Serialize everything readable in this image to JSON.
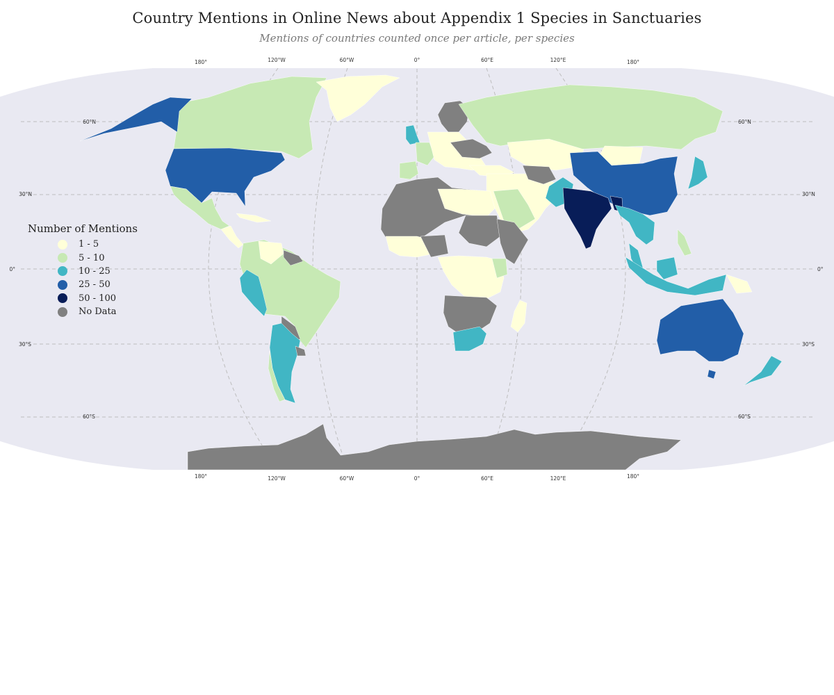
{
  "title": "Country Mentions in Online News about Appendix 1 Species in Sanctuaries",
  "subtitle": "Mentions of countries counted once per article, per species",
  "colors": {
    "ocean": "#e9e9f2",
    "grid": "#bdbdbd",
    "c1_5": "#ffffd9",
    "c5_10": "#c7e9b4",
    "c10_25": "#41b6c4",
    "c25_50": "#225ea8",
    "c50_100": "#081d58",
    "no_data": "#808080"
  },
  "legend": {
    "title": "Number of Mentions",
    "items": [
      {
        "label": "1 - 5",
        "color": "#ffffd9"
      },
      {
        "label": "5 - 10",
        "color": "#c7e9b4"
      },
      {
        "label": "10 - 25",
        "color": "#41b6c4"
      },
      {
        "label": "25 - 50",
        "color": "#225ea8"
      },
      {
        "label": "50 - 100",
        "color": "#081d58"
      },
      {
        "label": "No Data",
        "color": "#808080"
      }
    ]
  },
  "gridlabels": {
    "top": [
      "180°",
      "120°W",
      "60°W",
      "0°",
      "60°E",
      "120°E",
      "180°"
    ],
    "bottom": [
      "180°",
      "120°W",
      "60°W",
      "0°",
      "60°E",
      "120°E",
      "180°"
    ],
    "left": [
      "60°N",
      "30°N",
      "0°",
      "30°S",
      "60°S"
    ],
    "right": [
      "60°N",
      "30°N",
      "0°",
      "30°S",
      "60°S"
    ]
  }
}
